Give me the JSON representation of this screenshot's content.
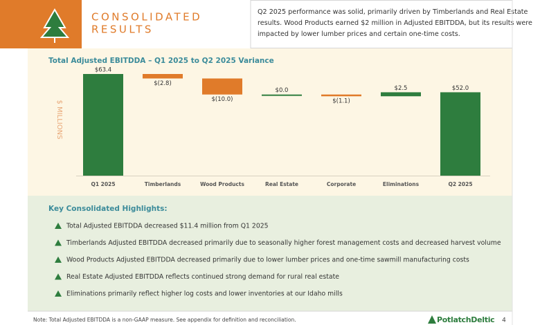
{
  "header": {
    "title_lines": [
      "CONSOLIDATED",
      "RESULTS"
    ],
    "summary_lines": [
      "Q2 2025 performance was solid, primarily driven by Timberlands and Real Estate",
      "results. Wood Products earned $2 million in Adjusted EBITDDA, but its results were",
      "impacted by lower lumber prices and certain one-time costs."
    ]
  },
  "chart_data": {
    "type": "waterfall",
    "title": "Total Adjusted EBITDDA – Q1 2025 to Q2 2025 Variance",
    "y_label": "$ MILLIONS",
    "categories": [
      "Q1 2025",
      "Timberlands",
      "Wood Products",
      "Real Estate",
      "Corporate",
      "Eliminations",
      "Q2 2025"
    ],
    "values": [
      63.4,
      -2.8,
      -10.0,
      0.0,
      -1.1,
      2.5,
      52.0
    ],
    "value_labels": [
      "$63.4",
      "$(2.8)",
      "$(10.0)",
      "$0.0",
      "$(1.1)",
      "$2.5",
      "$52.0"
    ],
    "is_total": [
      true,
      false,
      false,
      false,
      false,
      false,
      true
    ],
    "positive_color": "#2e7d3e",
    "negative_color": "#e07b2a"
  },
  "highlights": {
    "heading": "Key Consolidated Highlights:",
    "items": [
      "Total Adjusted EBITDDA decreased $11.4 million from Q1 2025",
      "Timberlands Adjusted EBITDDA decreased primarily due to seasonally higher forest management costs and decreased harvest volume",
      "Wood Products Adjusted EBITDDA decreased primarily due to lower lumber prices and one-time sawmill manufacturing costs",
      "Real Estate Adjusted EBITDDA reflects continued strong demand for rural real estate",
      "Eliminations primarily reflect higher log costs and lower inventories at our Idaho mills"
    ]
  },
  "footer": {
    "note": "Note: Total Adjusted EBITDDA is a non-GAAP measure. See appendix for definition and reconciliation.",
    "logo": "PotlatchDeltic",
    "page": "4"
  }
}
